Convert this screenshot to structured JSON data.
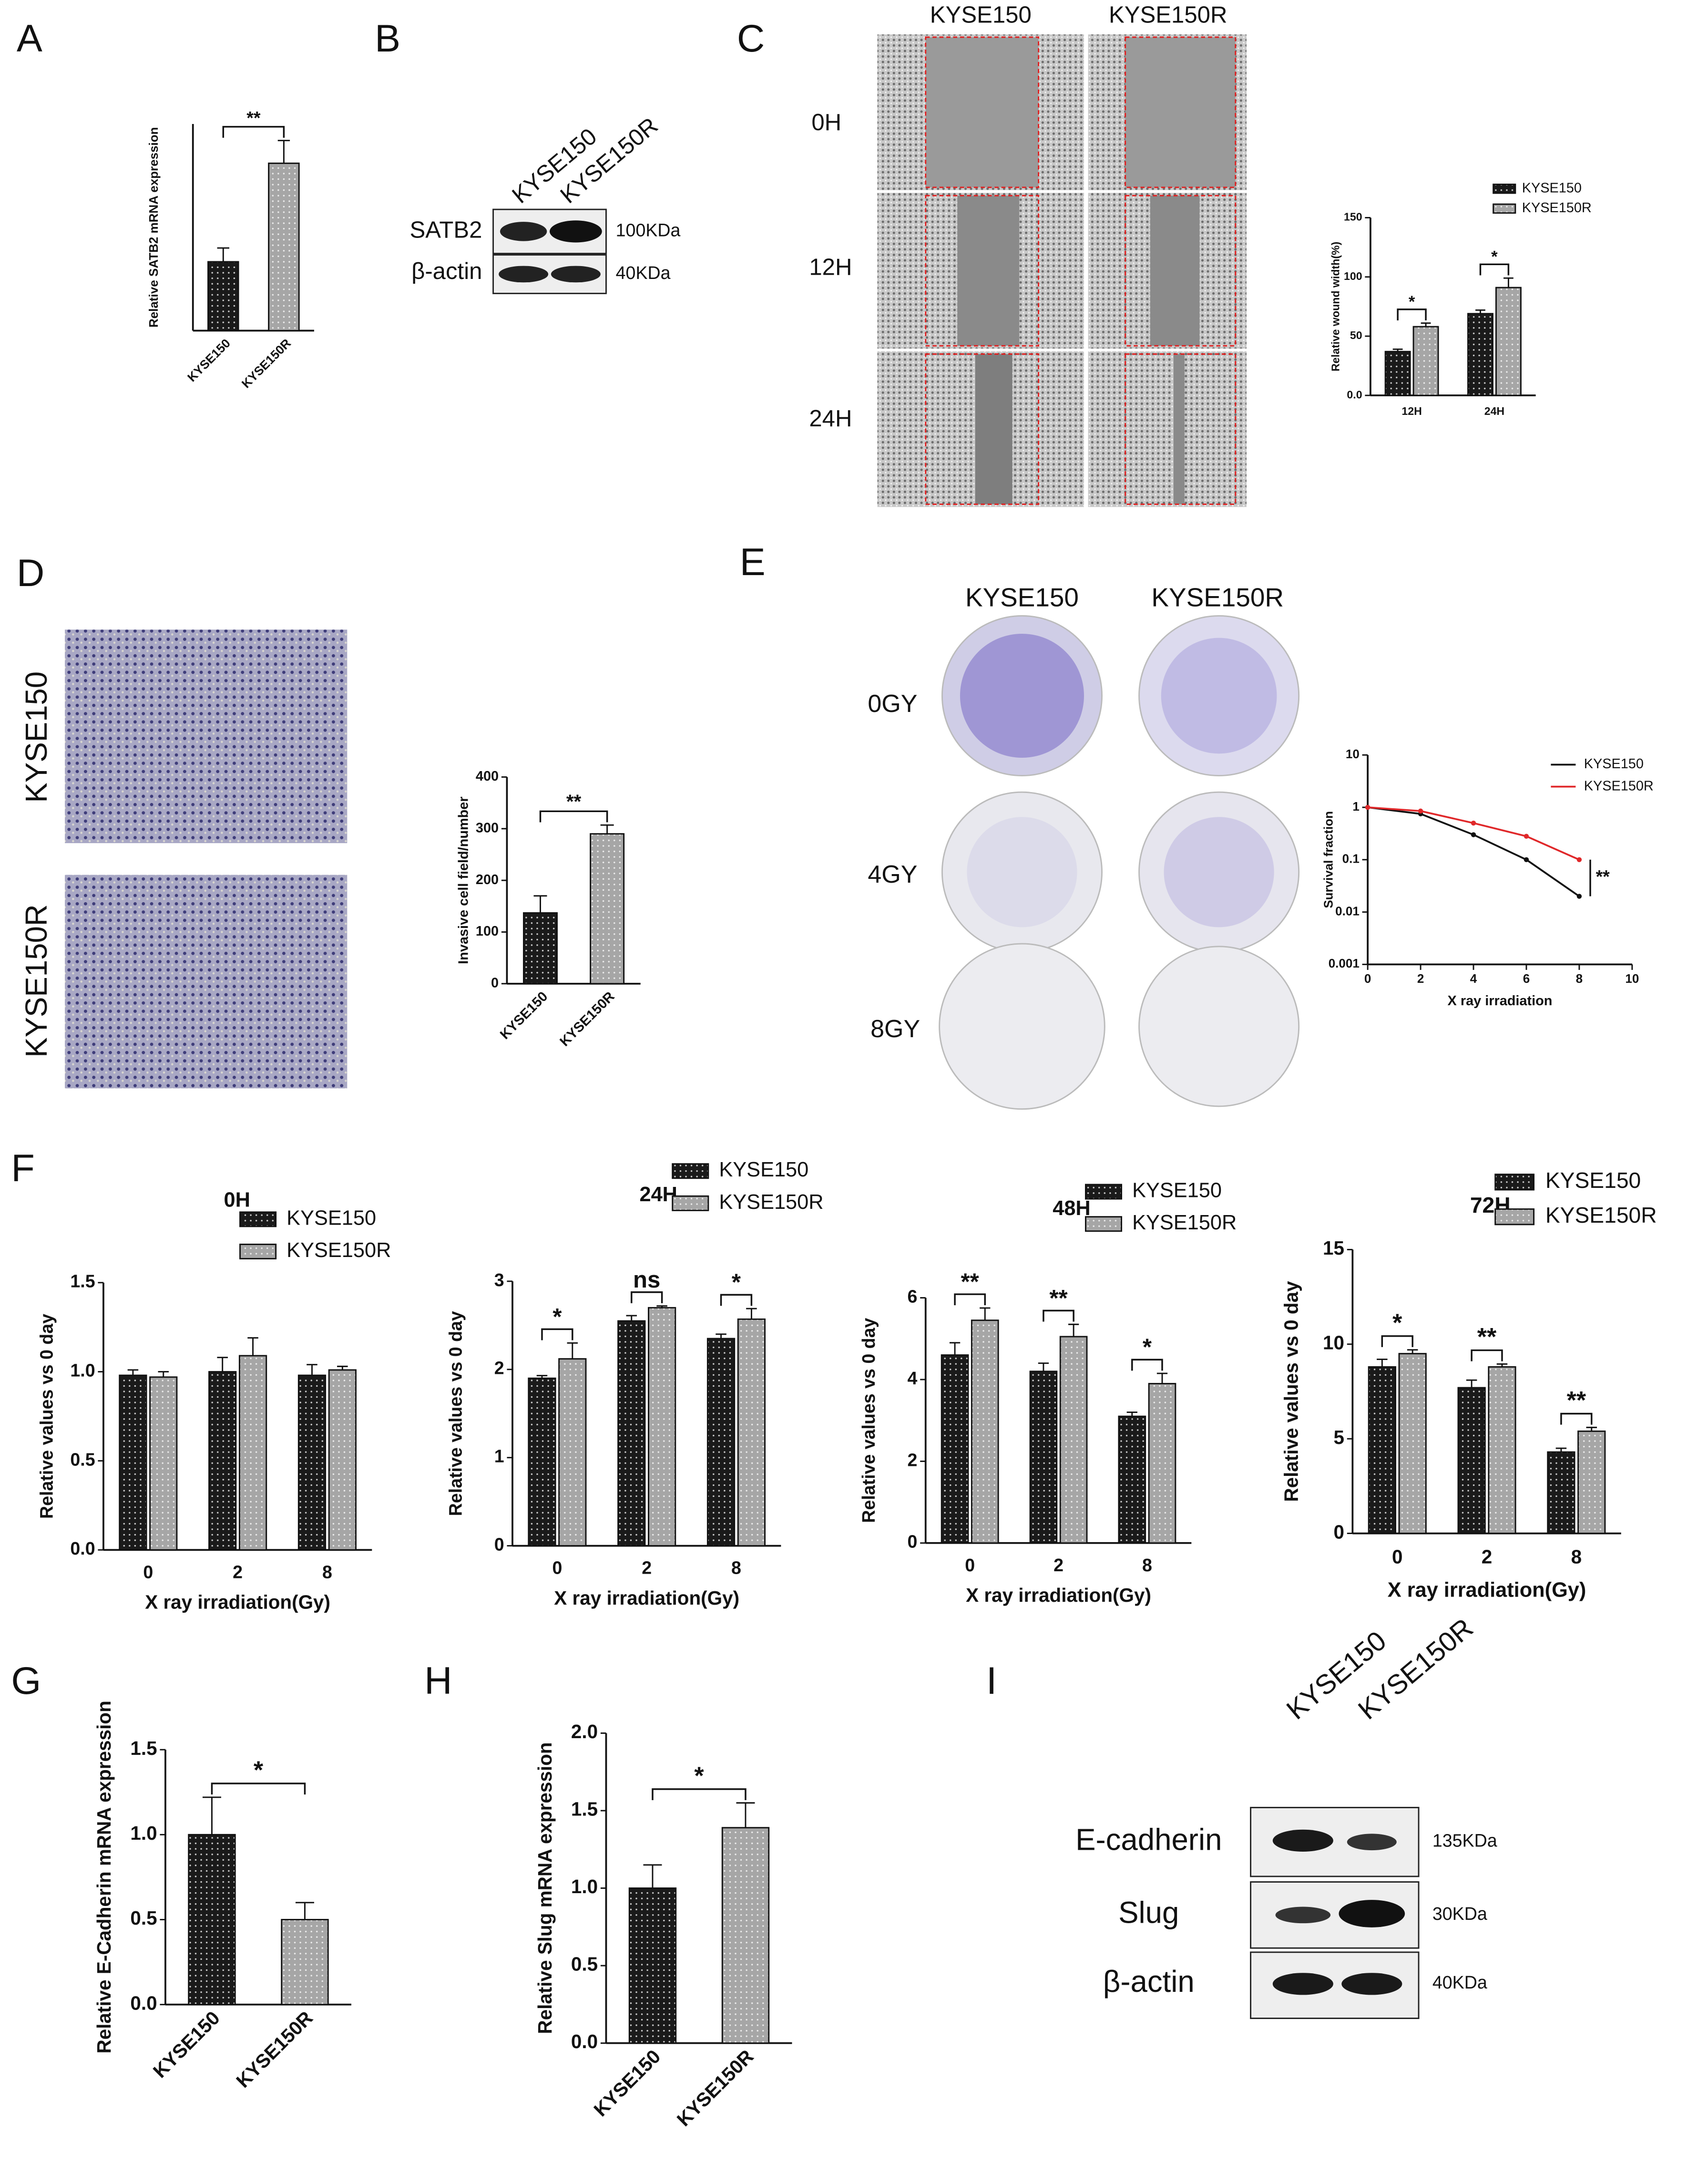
{
  "panel_letters": [
    "A",
    "B",
    "C",
    "D",
    "E",
    "F",
    "G",
    "H",
    "I"
  ],
  "blot_b": {
    "columns": [
      "KYSE150",
      "KYSE150R"
    ],
    "rows": [
      {
        "protein": "SATB2",
        "size": "100KDa"
      },
      {
        "protein": "β-actin",
        "size": "40KDa"
      }
    ]
  },
  "wound_c": {
    "columns": [
      "KYSE150",
      "KYSE150R"
    ],
    "rows": [
      "0H",
      "12H",
      "24H"
    ]
  },
  "transwell_d": {
    "rows": [
      "KYSE150",
      "KYSE150R"
    ]
  },
  "colony_e": {
    "columns": [
      "KYSE150",
      "KYSE150R"
    ],
    "rows": [
      "0GY",
      "4GY",
      "8GY"
    ]
  },
  "blot_i": {
    "columns": [
      "KYSE150",
      "KYSE150R"
    ],
    "rows": [
      {
        "protein": "E-cadherin",
        "size": "135KDa"
      },
      {
        "protein": "Slug",
        "size": "30KDa"
      },
      {
        "protein": "β-actin",
        "size": "40KDa"
      }
    ]
  },
  "chart_data": [
    {
      "type": "bar",
      "ylabel": "Relative SATB2 mRNA expression",
      "categories": [
        "KYSE150",
        "KYSE150R"
      ],
      "values": [
        1.0,
        2.43
      ],
      "errors": [
        0.2,
        0.33
      ],
      "colors": [
        "#1a1a1a",
        "#a6a6a6"
      ],
      "ylim": [
        0,
        3
      ],
      "annotations": [
        "**"
      ]
    },
    {
      "type": "bar",
      "ylabel": "Relative wound width(%)",
      "categories": [
        "12H",
        "24H"
      ],
      "series": [
        {
          "name": "KYSE150",
          "color": "#1a1a1a",
          "values": [
            37,
            69
          ],
          "errors": [
            2,
            3
          ]
        },
        {
          "name": "KYSE150R",
          "color": "#a6a6a6",
          "values": [
            58,
            91
          ],
          "errors": [
            3,
            8
          ]
        }
      ],
      "ylim": [
        0,
        150
      ],
      "yticks": [
        {
          "value": 0,
          "label": "0.0"
        },
        50,
        100,
        150
      ],
      "annotations": [
        "*",
        "*"
      ]
    },
    {
      "type": "bar",
      "ylabel": "Invasive cell field/number",
      "categories": [
        "KYSE150",
        "KYSE150R"
      ],
      "values": [
        137,
        290
      ],
      "errors": [
        33,
        17
      ],
      "colors": [
        "#1a1a1a",
        "#a6a6a6"
      ],
      "ylim": [
        0,
        400
      ],
      "yticks": [
        0,
        100,
        200,
        300,
        400
      ],
      "annotations": [
        "**"
      ]
    },
    {
      "type": "line",
      "xlabel": "X ray irradiation",
      "ylabel": "Survival fraction",
      "log_y": true,
      "x": [
        0,
        2,
        4,
        6,
        8
      ],
      "series": [
        {
          "name": "KYSE150",
          "color": "#111111",
          "values": [
            1,
            0.75,
            0.3,
            0.1,
            0.02
          ]
        },
        {
          "name": "KYSE150R",
          "color": "#e0282a",
          "values": [
            1,
            0.85,
            0.5,
            0.28,
            0.1
          ]
        }
      ],
      "xlim": [
        0,
        10
      ],
      "xticks": [
        0,
        2,
        4,
        6,
        8,
        10
      ],
      "ylim": [
        0.001,
        10
      ],
      "yticks": [
        0.001,
        0.01,
        0.1,
        1,
        10
      ],
      "annotations": [
        "**"
      ]
    },
    {
      "type": "bar",
      "title": "0H",
      "xlabel": "X ray irradiation(Gy)",
      "ylabel": "Relative values vs 0 day",
      "categories": [
        "0",
        "2",
        "8"
      ],
      "series": [
        {
          "name": "KYSE150",
          "color": "#1a1a1a",
          "values": [
            0.98,
            1.0,
            0.98
          ],
          "errors": [
            0.03,
            0.08,
            0.06
          ]
        },
        {
          "name": "KYSE150R",
          "color": "#a6a6a6",
          "values": [
            0.97,
            1.09,
            1.01
          ],
          "errors": [
            0.03,
            0.1,
            0.02
          ]
        }
      ],
      "ylim": [
        0,
        1.5
      ],
      "yticks": [
        {
          "value": 0,
          "label": "0.0"
        },
        0.5,
        {
          "value": 1,
          "label": "1.0"
        },
        1.5
      ]
    },
    {
      "type": "bar",
      "title": "24H",
      "xlabel": "X ray irradiation(Gy)",
      "ylabel": "Relative values vs 0 day",
      "categories": [
        "0",
        "2",
        "8"
      ],
      "series": [
        {
          "name": "KYSE150",
          "color": "#1a1a1a",
          "values": [
            1.9,
            2.55,
            2.35
          ],
          "errors": [
            0.03,
            0.06,
            0.05
          ]
        },
        {
          "name": "KYSE150R",
          "color": "#a6a6a6",
          "values": [
            2.12,
            2.7,
            2.57
          ],
          "errors": [
            0.18,
            0.02,
            0.12
          ]
        }
      ],
      "ylim": [
        0,
        3
      ],
      "yticks": [
        0,
        1,
        2,
        3
      ],
      "annotations": [
        "*",
        "ns",
        "*"
      ]
    },
    {
      "type": "bar",
      "title": "48H",
      "xlabel": "X ray irradiation(Gy)",
      "ylabel": "Relative values vs 0 day",
      "categories": [
        "0",
        "2",
        "8"
      ],
      "series": [
        {
          "name": "KYSE150",
          "color": "#1a1a1a",
          "values": [
            4.6,
            4.2,
            3.1
          ],
          "errors": [
            0.3,
            0.2,
            0.1
          ]
        },
        {
          "name": "KYSE150R",
          "color": "#a6a6a6",
          "values": [
            5.45,
            5.05,
            3.9
          ],
          "errors": [
            0.3,
            0.3,
            0.25
          ]
        }
      ],
      "ylim": [
        0,
        6
      ],
      "yticks": [
        0,
        2,
        4,
        6
      ],
      "annotations": [
        "**",
        "**",
        "*"
      ]
    },
    {
      "type": "bar",
      "title": "72H",
      "xlabel": "X ray irradiation(Gy)",
      "ylabel": "Relative values vs 0 day",
      "categories": [
        "0",
        "2",
        "8"
      ],
      "series": [
        {
          "name": "KYSE150",
          "color": "#1a1a1a",
          "values": [
            8.8,
            7.7,
            4.3
          ],
          "errors": [
            0.4,
            0.4,
            0.2
          ]
        },
        {
          "name": "KYSE150R",
          "color": "#a6a6a6",
          "values": [
            9.5,
            8.8,
            5.4
          ],
          "errors": [
            0.2,
            0.15,
            0.2
          ]
        }
      ],
      "ylim": [
        0,
        15
      ],
      "yticks": [
        0,
        5,
        10,
        15
      ],
      "annotations": [
        "*",
        "**",
        "**"
      ]
    },
    {
      "type": "bar",
      "ylabel": "Relative E-Cadherin mRNA expression",
      "categories": [
        "KYSE150",
        "KYSE150R"
      ],
      "values": [
        1.0,
        0.5
      ],
      "errors": [
        0.22,
        0.1
      ],
      "colors": [
        "#1a1a1a",
        "#a6a6a6"
      ],
      "ylim": [
        0,
        1.5
      ],
      "yticks": [
        {
          "value": 0,
          "label": "0.0"
        },
        0.5,
        {
          "value": 1,
          "label": "1.0"
        },
        1.5
      ],
      "annotations": [
        "*"
      ]
    },
    {
      "type": "bar",
      "ylabel": "Relative Slug mRNA expression",
      "categories": [
        "KYSE150",
        "KYSE150R"
      ],
      "values": [
        1.0,
        1.39
      ],
      "errors": [
        0.15,
        0.16
      ],
      "colors": [
        "#1a1a1a",
        "#a6a6a6"
      ],
      "ylim": [
        0,
        2
      ],
      "yticks": [
        {
          "value": 0,
          "label": "0.0"
        },
        0.5,
        {
          "value": 1,
          "label": "1.0"
        },
        1.5,
        {
          "value": 2,
          "label": "2.0"
        }
      ],
      "annotations": [
        "*"
      ]
    }
  ]
}
